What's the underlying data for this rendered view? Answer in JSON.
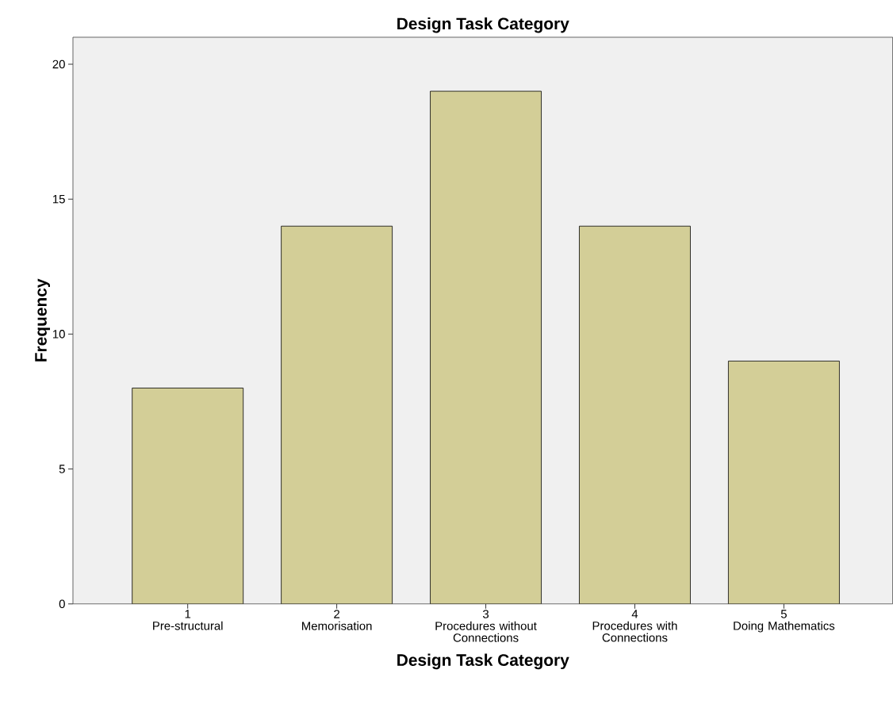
{
  "chart_data": {
    "type": "bar",
    "title": "Design Task Category",
    "xlabel": "Design Task Category",
    "ylabel": "Frequency",
    "categories": [
      "1\nPre-structural",
      "2\nMemorisation",
      "3\nProcedures without Connections",
      "4\nProcedures with Connections",
      "5\nDoing Mathematics"
    ],
    "values": [
      8,
      14,
      19,
      14,
      9
    ],
    "color": "#d3ce97",
    "ylim": [
      0,
      21
    ],
    "yticks": [
      0,
      5,
      10,
      15,
      20
    ],
    "grid": false
  }
}
